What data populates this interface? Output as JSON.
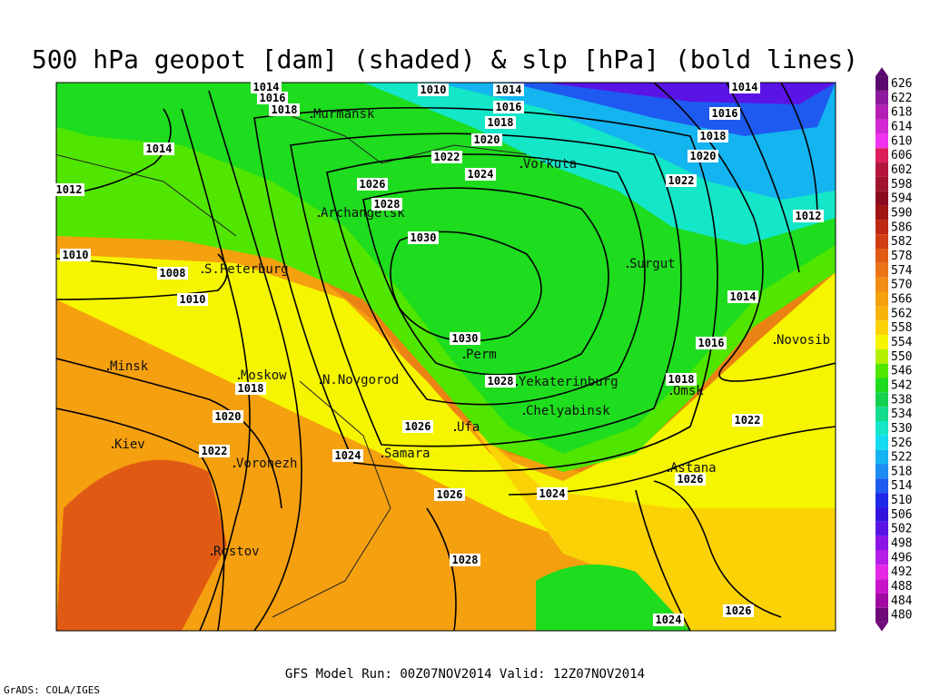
{
  "title": "500 hPa geopot [dam] (shaded) & slp [hPa] (bold lines)",
  "cities": [
    "Murmansk",
    "Vorkuta",
    "Archangelsk",
    "S.Peterburg",
    "Surgut",
    "Novosib",
    "Minsk",
    "Moskow",
    "N.Novgorod",
    "Perm",
    "Yekaterinburg",
    "Omsk",
    "Chelyabinsk",
    "Ufa",
    "Kiev",
    "Voronezh",
    "Samara",
    "Astana",
    "Rostov"
  ],
  "contour_labels": [
    1014,
    1016,
    1018,
    1010,
    1014,
    1016,
    1018,
    1020,
    1022,
    1024,
    1026,
    1028,
    1030,
    1030,
    1028,
    1026,
    1024,
    1026,
    1028,
    1024,
    1024,
    1026,
    1026,
    1022,
    1018,
    1016,
    1014,
    1012,
    1022,
    1020,
    1018,
    1016,
    1014,
    1014,
    1012,
    1010,
    1008,
    1010,
    1018,
    1020,
    1022
  ],
  "colorbar": {
    "levels": [
      626,
      622,
      618,
      614,
      610,
      606,
      602,
      598,
      594,
      590,
      586,
      582,
      578,
      574,
      570,
      566,
      562,
      558,
      554,
      550,
      546,
      542,
      538,
      534,
      530,
      526,
      522,
      518,
      514,
      510,
      506,
      502,
      498,
      496,
      492,
      488,
      484,
      480
    ],
    "colors": [
      "#5a0a6e",
      "#8c1a9c",
      "#b41eb4",
      "#d228d2",
      "#f032f0",
      "#dc1e5a",
      "#b4143c",
      "#a0142d",
      "#8c0a1e",
      "#a01414",
      "#be2814",
      "#d23c14",
      "#e15a14",
      "#eb7314",
      "#f08c14",
      "#f5a00f",
      "#f8b40a",
      "#fad205",
      "#f5f500",
      "#b4f000",
      "#50e600",
      "#1edc1e",
      "#14d250",
      "#14dc8c",
      "#14e6c8",
      "#14dcf0",
      "#14b4f0",
      "#1e8cf0",
      "#1e5af0",
      "#1e28e6",
      "#3214dc",
      "#5a14e6",
      "#8c14e6",
      "#b41ee6",
      "#e628e6",
      "#c814c8",
      "#a00aa0",
      "#6e0a78"
    ]
  },
  "footer": "GFS Model Run: 00Z07NOV2014 Valid: 12Z07NOV2014",
  "credit": "GrADS: COLA/IGES"
}
